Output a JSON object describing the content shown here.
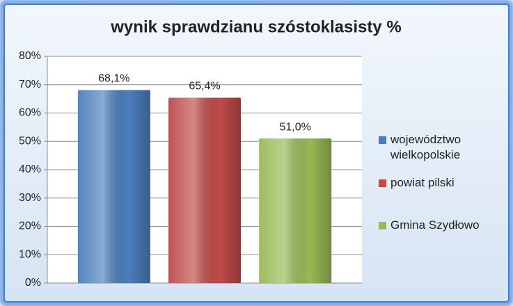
{
  "chart_data": {
    "type": "bar",
    "title": "wynik sprawdzianu szóstoklasisty %",
    "categories": [
      null
    ],
    "series": [
      {
        "name": "województwo wielkopolskie",
        "color": "#4a7ebb",
        "values": [
          68.1
        ],
        "value_labels": [
          "68,1%"
        ]
      },
      {
        "name": "powiat pilski",
        "color": "#be4b48",
        "values": [
          65.4
        ],
        "value_labels": [
          "65,4%"
        ]
      },
      {
        "name": "Gmina Szydłowo",
        "color": "#98b954",
        "values": [
          51.0
        ],
        "value_labels": [
          "51,0%"
        ]
      }
    ],
    "ylim": [
      0,
      80
    ],
    "yticks": [
      {
        "value": 0,
        "label": "0%"
      },
      {
        "value": 10,
        "label": "10%"
      },
      {
        "value": 20,
        "label": "20%"
      },
      {
        "value": 30,
        "label": "30%"
      },
      {
        "value": 40,
        "label": "40%"
      },
      {
        "value": 50,
        "label": "50%"
      },
      {
        "value": 60,
        "label": "60%"
      },
      {
        "value": 70,
        "label": "70%"
      },
      {
        "value": 80,
        "label": "80%"
      }
    ],
    "grid": true,
    "legend": "right"
  }
}
